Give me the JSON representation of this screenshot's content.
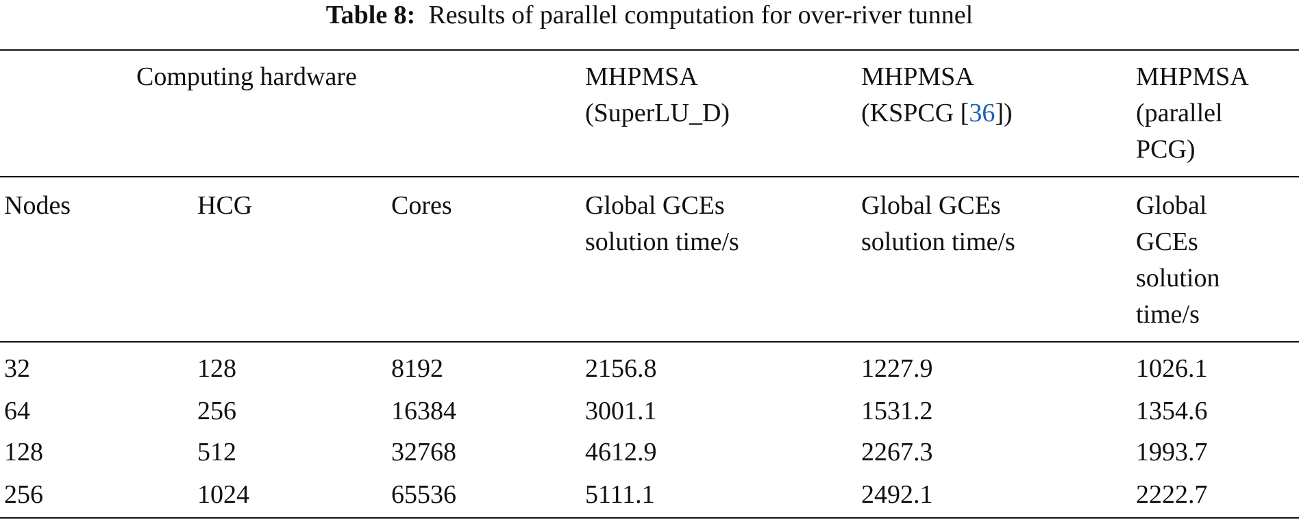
{
  "title": {
    "label": "Table 8:",
    "text": "Results of parallel computation for over-river tunnel"
  },
  "table": {
    "group_header": {
      "hardware": "Computing hardware",
      "methods": [
        {
          "lines": [
            "MHPMSA",
            "(SuperLU_D)"
          ]
        },
        {
          "lines": [
            "MHPMSA"
          ],
          "ref_line": {
            "before": "(KSPCG [",
            "ref": "36",
            "after": "])"
          }
        },
        {
          "lines": [
            "MHPMSA",
            "(parallel",
            "PCG)"
          ]
        }
      ]
    },
    "columns": [
      [
        "Nodes"
      ],
      [
        "HCG"
      ],
      [
        "Cores"
      ],
      [
        "Global GCEs",
        "solution time/s"
      ],
      [
        "Global GCEs",
        "solution time/s"
      ],
      [
        "Global",
        "GCEs",
        "solution",
        "time/s"
      ]
    ],
    "rows": [
      [
        "32",
        "128",
        "8192",
        "2156.8",
        "1227.9",
        "1026.1"
      ],
      [
        "64",
        "256",
        "16384",
        "3001.1",
        "1531.2",
        "1354.6"
      ],
      [
        "128",
        "512",
        "32768",
        "4612.9",
        "2267.3",
        "1993.7"
      ],
      [
        "256",
        "1024",
        "65536",
        "5111.1",
        "2492.1",
        "2222.7"
      ]
    ]
  }
}
